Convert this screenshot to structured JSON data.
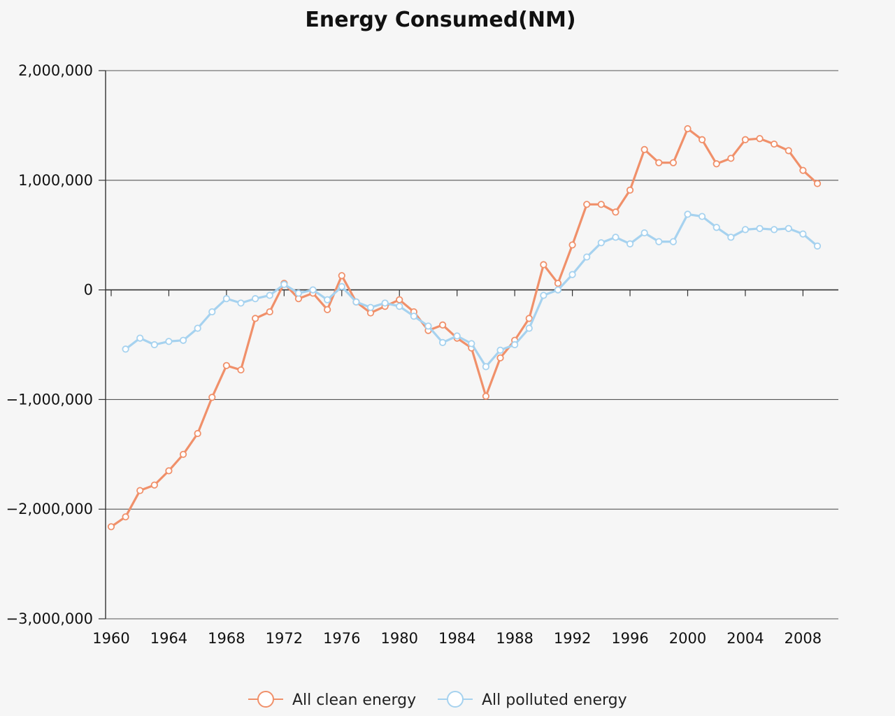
{
  "chart_data": {
    "type": "line",
    "title": "Energy Consumed(NM)",
    "xlabel": "",
    "ylabel": "",
    "xlim": [
      1960,
      2009
    ],
    "ylim": [
      -3000000,
      2000000
    ],
    "grid": true,
    "legend_position": "bottom-center",
    "x_ticks": [
      1960,
      1964,
      1968,
      1972,
      1976,
      1980,
      1984,
      1988,
      1992,
      1996,
      2000,
      2004,
      2008
    ],
    "x_tick_labels": [
      "1960",
      "1964",
      "1968",
      "1972",
      "1976",
      "1980",
      "1984",
      "1988",
      "1992",
      "1996",
      "2000",
      "2004",
      "2008"
    ],
    "y_ticks": [
      2000000,
      1000000,
      0,
      -1000000,
      -2000000,
      -3000000
    ],
    "y_tick_labels": [
      "2,000,000",
      "1,000,000",
      "0",
      "−1,000,000",
      "−2,000,000",
      "−3,000,000"
    ],
    "series": [
      {
        "name": "All clean energy",
        "color": "#f0906a",
        "x": [
          1960,
          1961,
          1962,
          1963,
          1964,
          1965,
          1966,
          1967,
          1968,
          1969,
          1970,
          1971,
          1972,
          1973,
          1974,
          1975,
          1976,
          1977,
          1978,
          1979,
          1980,
          1981,
          1982,
          1983,
          1984,
          1985,
          1986,
          1987,
          1988,
          1989,
          1990,
          1991,
          1992,
          1993,
          1994,
          1995,
          1996,
          1997,
          1998,
          1999,
          2000,
          2001,
          2002,
          2003,
          2004,
          2005,
          2006,
          2007,
          2008,
          2009
        ],
        "values": [
          -2160000,
          -2070000,
          -1830000,
          -1780000,
          -1650000,
          -1500000,
          -1310000,
          -980000,
          -690000,
          -730000,
          -260000,
          -200000,
          60000,
          -80000,
          -30000,
          -180000,
          130000,
          -110000,
          -210000,
          -150000,
          -90000,
          -200000,
          -370000,
          -320000,
          -440000,
          -530000,
          -970000,
          -620000,
          -460000,
          -260000,
          230000,
          60000,
          410000,
          780000,
          780000,
          710000,
          910000,
          1280000,
          1160000,
          1160000,
          1470000,
          1370000,
          1150000,
          1200000,
          1370000,
          1380000,
          1330000,
          1270000,
          1090000,
          970000
        ]
      },
      {
        "name": "All polluted energy",
        "color": "#a6d2ef",
        "x": [
          1961,
          1962,
          1963,
          1964,
          1965,
          1966,
          1967,
          1968,
          1969,
          1970,
          1971,
          1972,
          1973,
          1974,
          1975,
          1976,
          1977,
          1978,
          1979,
          1980,
          1981,
          1982,
          1983,
          1984,
          1985,
          1986,
          1987,
          1988,
          1989,
          1990,
          1991,
          1992,
          1993,
          1994,
          1995,
          1996,
          1997,
          1998,
          1999,
          2000,
          2001,
          2002,
          2003,
          2004,
          2005,
          2006,
          2007,
          2008,
          2009
        ],
        "values": [
          -540000,
          -440000,
          -500000,
          -470000,
          -460000,
          -350000,
          -200000,
          -80000,
          -120000,
          -80000,
          -50000,
          50000,
          -30000,
          0,
          -90000,
          30000,
          -110000,
          -160000,
          -120000,
          -150000,
          -240000,
          -330000,
          -480000,
          -420000,
          -490000,
          -700000,
          -550000,
          -500000,
          -350000,
          -50000,
          0,
          140000,
          300000,
          430000,
          480000,
          420000,
          520000,
          440000,
          440000,
          690000,
          670000,
          570000,
          480000,
          550000,
          560000,
          550000,
          560000,
          510000,
          400000
        ]
      }
    ]
  }
}
